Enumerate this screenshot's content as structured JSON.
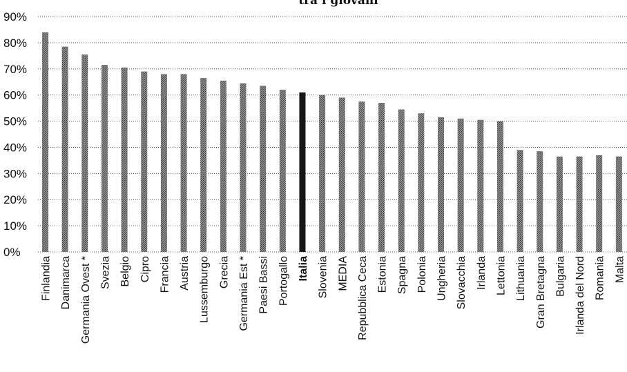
{
  "chart_data": {
    "type": "bar",
    "title": "tra i giovani",
    "xlabel": "",
    "ylabel": "",
    "ylim": [
      0,
      90
    ],
    "yticks": [
      0,
      10,
      20,
      30,
      40,
      50,
      60,
      70,
      80,
      90
    ],
    "ytick_labels": [
      "0%",
      "10%",
      "20%",
      "30%",
      "40%",
      "50%",
      "60%",
      "70%",
      "80%",
      "90%"
    ],
    "grid": true,
    "categories": [
      "Finlandia",
      "Danimarca",
      "Germania Ovest *",
      "Svezia",
      "Belgio",
      "Cipro",
      "Francia",
      "Austria",
      "Lussemburgo",
      "Grecia",
      "Germania Est *",
      "Paesi Bassi",
      "Portogallo",
      "Italia",
      "Slovenia",
      "MEDIA",
      "Repubblica Ceca",
      "Estonia",
      "Spagna",
      "Polonia",
      "Ungheria",
      "Slovacchia",
      "Irlanda",
      "Lettonia",
      "Lithuania",
      "Gran Bretagna",
      "Bulgaria",
      "Irlanda del Nord",
      "Romania",
      "Malta"
    ],
    "values": [
      84,
      78.5,
      75.5,
      71.5,
      70.5,
      69,
      68,
      68,
      66.5,
      65.5,
      64.5,
      63.5,
      62,
      61,
      60,
      59,
      57.5,
      57,
      54.5,
      53,
      51.5,
      51,
      50.5,
      50,
      39,
      38.5,
      36.5,
      36.5,
      37,
      36.5
    ],
    "highlight_category": "Italia",
    "colors": {
      "bar": "#7a7a7a",
      "bar_highlight": "#161616",
      "text": "#111111"
    }
  }
}
